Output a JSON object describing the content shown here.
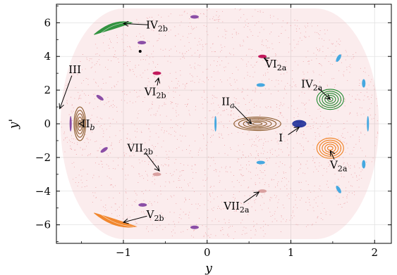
{
  "chart_data": {
    "type": "scatter",
    "xlabel": "y",
    "ylabel": "y'",
    "xlim": [
      -1.8,
      2.2
    ],
    "ylim": [
      -7.1,
      7.1
    ],
    "xticks": [
      -1,
      0,
      1,
      2
    ],
    "yticks": [
      -6,
      -4,
      -2,
      0,
      2,
      4,
      6
    ],
    "grid": true,
    "chaotic_sea": {
      "color": "#e8888c",
      "x_range": [
        -1.75,
        2.05
      ],
      "y_range": [
        -6.85,
        6.85
      ]
    },
    "point": {
      "x": -0.8,
      "y": 4.3,
      "color": "#000000"
    },
    "islands": [
      {
        "id": "I",
        "type": "torus",
        "color": "#2b3a9e",
        "center": [
          1.1,
          0.0
        ],
        "size": [
          0.08,
          0.2
        ]
      },
      {
        "id": "IIa",
        "type": "torus",
        "color": "#8b5a2b",
        "center": [
          0.6,
          0.0
        ],
        "size": [
          0.28,
          0.4
        ]
      },
      {
        "id": "IIb",
        "type": "torus",
        "color": "#8b5a2b",
        "center": [
          -1.52,
          0.0
        ],
        "size": [
          0.07,
          1.0
        ]
      },
      {
        "id": "IV2a",
        "type": "torus",
        "color": "#1e8a2e",
        "center": [
          1.47,
          1.45
        ],
        "size": [
          0.16,
          0.6
        ]
      },
      {
        "id": "V2a",
        "type": "torus",
        "color": "#f07d1a",
        "center": [
          1.47,
          -1.45
        ],
        "size": [
          0.16,
          0.6
        ]
      },
      {
        "id": "IV2b",
        "type": "crescent",
        "color": "#1e8a2e",
        "from": [
          -1.35,
          5.3
        ],
        "to": [
          -0.9,
          6.0
        ]
      },
      {
        "id": "V2b",
        "type": "crescent",
        "color": "#f07d1a",
        "from": [
          -1.35,
          -5.3
        ],
        "to": [
          -0.85,
          -6.1
        ]
      },
      {
        "id": "III",
        "type": "chain",
        "color": "#8b4ea6",
        "points": [
          [
            -1.63,
            0
          ],
          [
            -1.28,
            1.55
          ],
          [
            -1.23,
            -1.55
          ],
          [
            -0.78,
            4.82
          ],
          [
            -0.77,
            -4.82
          ],
          [
            -0.15,
            6.35
          ],
          [
            -0.15,
            -6.15
          ]
        ]
      },
      {
        "id": "VI2a",
        "type": "chain",
        "color": "#c2185b",
        "points": [
          [
            0.66,
            4.0
          ]
        ]
      },
      {
        "id": "VI2b",
        "type": "chain",
        "color": "#c2185b",
        "points": [
          [
            -0.6,
            3.0
          ]
        ]
      },
      {
        "id": "VII2a",
        "type": "chain",
        "color": "#d9a0a0",
        "points": [
          [
            0.66,
            -4.0
          ]
        ]
      },
      {
        "id": "VII2b",
        "type": "chain",
        "color": "#d9a0a0",
        "points": [
          [
            -0.6,
            -3.0
          ]
        ]
      },
      {
        "id": "sky",
        "type": "chain",
        "color": "#45a8e0",
        "points": [
          [
            0.64,
            2.3
          ],
          [
            0.64,
            -2.3
          ],
          [
            0.1,
            0.0
          ],
          [
            1.57,
            3.9
          ],
          [
            1.57,
            -3.9
          ],
          [
            1.87,
            2.4
          ],
          [
            1.87,
            -2.4
          ],
          [
            1.92,
            0.0
          ]
        ]
      }
    ],
    "annotations": [
      {
        "label": "IV",
        "sub": "2b",
        "text": [
          -0.6,
          5.65
        ],
        "tip": [
          -1.0,
          5.95
        ]
      },
      {
        "label": "III",
        "sub": "",
        "text": [
          -1.58,
          3.0
        ],
        "tip": [
          -1.76,
          0.9
        ]
      },
      {
        "label": "VI",
        "sub": "2b",
        "text": [
          -0.62,
          1.7
        ],
        "tip": [
          -0.58,
          2.72
        ]
      },
      {
        "label": "VI",
        "sub": "2a",
        "text": [
          0.82,
          3.35
        ],
        "tip": [
          0.68,
          3.9
        ]
      },
      {
        "label": "IV",
        "sub": "2a",
        "text": [
          1.25,
          2.15
        ],
        "tip": [
          1.47,
          1.45
        ]
      },
      {
        "label": "II",
        "sub": "a",
        "text": [
          0.25,
          1.1
        ],
        "tip": [
          0.53,
          0.0
        ],
        "subItalic": true
      },
      {
        "label": "II",
        "sub": "b",
        "text": [
          -1.42,
          -0.2
        ],
        "tip": [
          -1.53,
          0.0
        ],
        "subItalic": true
      },
      {
        "label": "I",
        "sub": "",
        "text": [
          0.88,
          -1.05
        ],
        "tip": [
          1.1,
          -0.2
        ]
      },
      {
        "label": "VII",
        "sub": "2b",
        "text": [
          -0.8,
          -1.65
        ],
        "tip": [
          -0.57,
          -2.8
        ]
      },
      {
        "label": "V",
        "sub": "2a",
        "text": [
          1.57,
          -2.65
        ],
        "tip": [
          1.47,
          -1.6
        ]
      },
      {
        "label": "VII",
        "sub": "2a",
        "text": [
          0.35,
          -5.1
        ],
        "tip": [
          0.62,
          -4.05
        ]
      },
      {
        "label": "V",
        "sub": "2b",
        "text": [
          -0.62,
          -5.6
        ],
        "tip": [
          -1.0,
          -5.85
        ]
      }
    ]
  }
}
